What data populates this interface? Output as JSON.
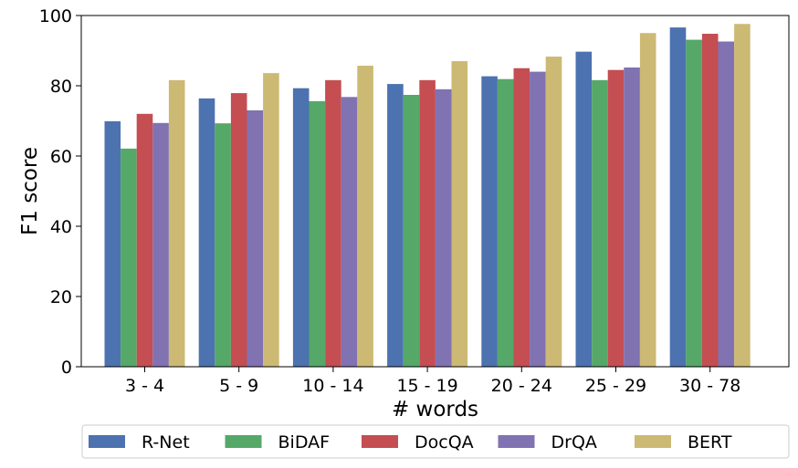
{
  "chart_data": {
    "type": "bar",
    "title": "",
    "xlabel": "# words",
    "ylabel": "F1 score",
    "ylim": [
      0,
      100
    ],
    "yticks": [
      0,
      20,
      40,
      60,
      80,
      100
    ],
    "categories": [
      "3 - 4",
      "5 - 9",
      "10 - 14",
      "15 - 19",
      "20 - 24",
      "25 - 29",
      "30 - 78"
    ],
    "series": [
      {
        "name": "R-Net",
        "color": "#4c72b0",
        "values": [
          69.9,
          76.4,
          79.3,
          80.5,
          82.7,
          89.7,
          96.6
        ]
      },
      {
        "name": "BiDAF",
        "color": "#55a868",
        "values": [
          62.1,
          69.3,
          75.6,
          77.4,
          81.9,
          81.6,
          93.1
        ]
      },
      {
        "name": "DocQA",
        "color": "#c44e52",
        "values": [
          72.0,
          77.9,
          81.6,
          81.6,
          85.0,
          84.5,
          94.8
        ]
      },
      {
        "name": "DrQA",
        "color": "#8172b2",
        "values": [
          69.4,
          73.0,
          76.8,
          79.0,
          84.0,
          85.2,
          92.6
        ]
      },
      {
        "name": "BERT",
        "color": "#ccb974",
        "values": [
          81.6,
          83.6,
          85.7,
          87.0,
          88.3,
          95.0,
          97.6
        ]
      }
    ],
    "grid": false,
    "legend_position": "bottom"
  }
}
